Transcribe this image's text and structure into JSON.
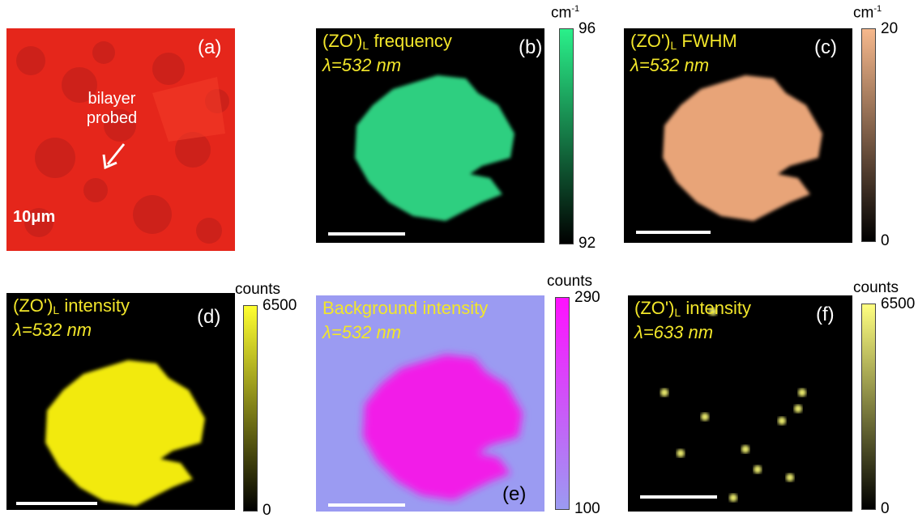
{
  "panels": [
    {
      "label": "(a)",
      "annotation": "bilayer probed",
      "scale_bar": "10μm"
    },
    {
      "label": "(b)",
      "title": {
        "main": "(ZO')",
        "sub": "L",
        "rest": " frequency"
      },
      "line2": "λ=532 nm",
      "colorbar": {
        "unit": "cm",
        "unit_sup": "-1",
        "max": 96,
        "min": 92
      }
    },
    {
      "label": "(c)",
      "title": {
        "main": "(ZO')",
        "sub": "L",
        "rest": " FWHM"
      },
      "line2": "λ=532 nm",
      "colorbar": {
        "unit": "cm",
        "unit_sup": "-1",
        "max": 20,
        "min": 0
      }
    },
    {
      "label": "(d)",
      "title": {
        "main": "(ZO')",
        "sub": "L",
        "rest": " intensity"
      },
      "line2": "λ=532 nm",
      "colorbar": {
        "unit": "counts",
        "max": 6500,
        "min": 0
      }
    },
    {
      "label": "(e)",
      "title": {
        "main": "Background intensity"
      },
      "line2": "λ=532 nm",
      "colorbar": {
        "unit": "counts",
        "max": 290,
        "min": 100
      }
    },
    {
      "label": "(f)",
      "title": {
        "main": "(ZO')",
        "sub": "L",
        "rest": " intensity"
      },
      "line2": "λ=633 nm",
      "colorbar": {
        "unit": "counts",
        "max": 6500,
        "min": 0
      }
    }
  ]
}
